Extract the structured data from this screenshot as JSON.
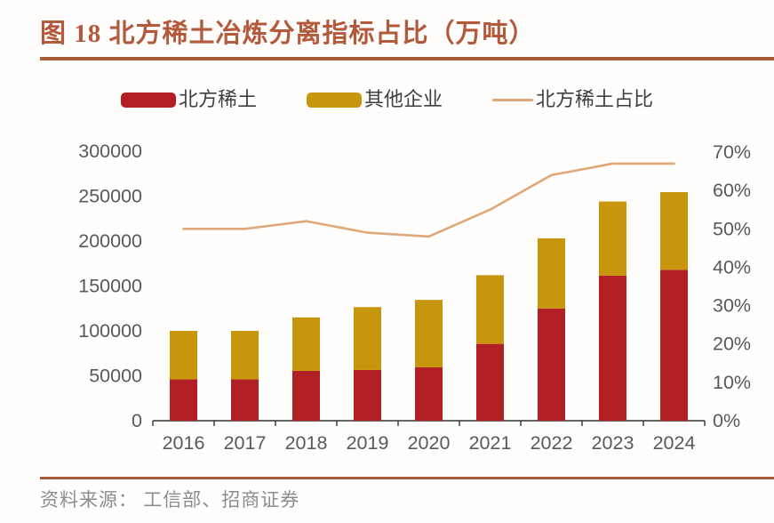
{
  "figure": {
    "title": "图 18  北方稀土冶炼分离指标占比（万吨）",
    "source_label": "资料来源：  工信部、招商证券"
  },
  "colors": {
    "title_text": "#b45a3c",
    "rule": "#a65a38",
    "bar_north": "#b22025",
    "bar_others": "#c8960c",
    "share_line": "#dfa878",
    "axis_text": "#595959",
    "axis_line": "#333333",
    "legend_text": "#3f3f3f",
    "source_text": "#8c8c8c"
  },
  "legend": [
    {
      "label": "北方稀土",
      "swatch": "bar",
      "color": "#b22025"
    },
    {
      "label": "其他企业",
      "swatch": "bar",
      "color": "#c8960c"
    },
    {
      "label": "北方稀土占比",
      "swatch": "line",
      "color": "#dfa878"
    }
  ],
  "chart_data": {
    "type": "bar",
    "subtype": "stacked-bar-with-line",
    "title": "北方稀土冶炼分离指标占比（万吨）",
    "categories": [
      "2016",
      "2017",
      "2018",
      "2019",
      "2020",
      "2021",
      "2022",
      "2023",
      "2024"
    ],
    "series": [
      {
        "name": "北方稀土",
        "type": "bar",
        "stack": "total",
        "axis": "left",
        "color": "#b22025",
        "values": [
          46000,
          46000,
          55500,
          56500,
          59500,
          85500,
          125000,
          161500,
          168000
        ]
      },
      {
        "name": "其他企业",
        "type": "bar",
        "stack": "total",
        "axis": "left",
        "color": "#c8960c",
        "values": [
          54000,
          54000,
          59500,
          70000,
          75000,
          76500,
          78000,
          82500,
          86500
        ]
      },
      {
        "name": "北方稀土占比",
        "type": "line",
        "axis": "right",
        "color": "#dfa878",
        "values": [
          50,
          50,
          52,
          49,
          48,
          55,
          64,
          67,
          67
        ],
        "unit": "%"
      }
    ],
    "left_axis": {
      "min": 0,
      "max": 300000,
      "step": 50000,
      "tick_labels": [
        "0",
        "50000",
        "100000",
        "150000",
        "200000",
        "250000",
        "300000"
      ]
    },
    "right_axis": {
      "min": 0,
      "max": 70,
      "step": 10,
      "unit": "%",
      "tick_labels": [
        "0%",
        "10%",
        "20%",
        "30%",
        "40%",
        "50%",
        "60%",
        "70%"
      ]
    },
    "grid": false,
    "legend_position": "top"
  }
}
